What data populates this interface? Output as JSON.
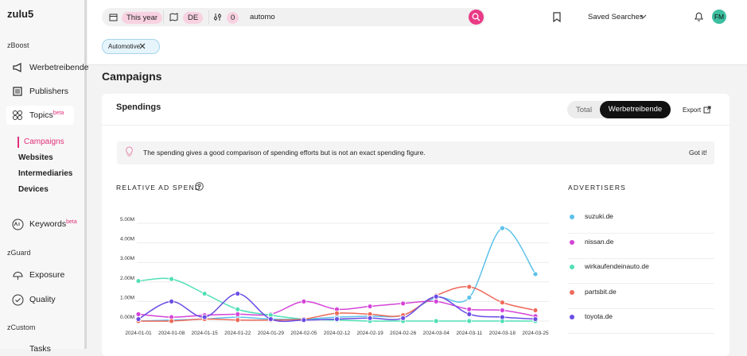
{
  "logo": "zulu5",
  "sidebar": {
    "group1": "zBoost",
    "items1": [
      "Werbetreibende",
      "Publishers"
    ],
    "topics": "Topics",
    "topics_badge": "beta",
    "subitems": [
      "Campaigns",
      "Websites",
      "Intermediaries",
      "Devices"
    ],
    "keywords": "Keywords",
    "keywords_badge": "beta",
    "group2": "zGuard",
    "items2": [
      "Exposure",
      "Quality"
    ],
    "group3": "zCustom",
    "items3": [
      "Tasks"
    ]
  },
  "header": {
    "date": "This year",
    "country": "DE",
    "filters": "0",
    "query": "automo",
    "saved": "Saved Searches",
    "avatar": "FM"
  },
  "chip": "Automotive",
  "page_title": "Campaigns",
  "card": {
    "title": "Spendings",
    "toggle": [
      "Total",
      "Werbetreibende"
    ],
    "export": "Export",
    "info": "The spending gives a good comparison of spending efforts but is not an exact spending figure.",
    "dismiss": "Got it!",
    "legend_title": "ADVERTISERS"
  },
  "chart_data": {
    "type": "line",
    "title": "RELATIVE AD SPEND",
    "x": [
      "2024-01-01",
      "2024-01-08",
      "2024-01-15",
      "2024-01-22",
      "2024-01-29",
      "2024-02-05",
      "2024-02-12",
      "2024-02-19",
      "2024-02-26",
      "2024-03-04",
      "2024-03-11",
      "2024-03-18",
      "2024-03-25"
    ],
    "series": [
      {
        "name": "suzuki.de",
        "color": "#5cc1ea",
        "values": [
          0,
          50000,
          100000,
          200000,
          100000,
          100000,
          200000,
          250000,
          300000,
          1200000,
          1200000,
          4750000,
          2400000
        ]
      },
      {
        "name": "nissan.de",
        "color": "#d444d8",
        "values": [
          350000,
          200000,
          300000,
          350000,
          350000,
          1000000,
          600000,
          750000,
          900000,
          1000000,
          600000,
          550000,
          250000
        ]
      },
      {
        "name": "wirkaufendeinauto.de",
        "color": "#52dfb6",
        "values": [
          2050000,
          2150000,
          1400000,
          600000,
          300000,
          100000,
          50000,
          0,
          0,
          0,
          0,
          0,
          0
        ]
      },
      {
        "name": "partsbit.de",
        "color": "#ee6a5a",
        "values": [
          0,
          0,
          100000,
          50000,
          50000,
          100000,
          400000,
          350000,
          300000,
          1300000,
          1750000,
          950000,
          550000
        ]
      },
      {
        "name": "toyota.de",
        "color": "#6a4ce4",
        "values": [
          100000,
          1000000,
          200000,
          1400000,
          100000,
          50000,
          100000,
          150000,
          150000,
          1250000,
          350000,
          200000,
          100000
        ]
      }
    ],
    "ylim": [
      0,
      5000000
    ],
    "yticks": [
      {
        "value": 0,
        "label": "0.00M"
      },
      {
        "value": 1000000,
        "label": "1.00M"
      },
      {
        "value": 2000000,
        "label": "2.00M"
      },
      {
        "value": 3000000,
        "label": "3.00M"
      },
      {
        "value": 4000000,
        "label": "4.00M"
      },
      {
        "value": 5000000,
        "label": "5.00M"
      }
    ],
    "grid": true
  }
}
